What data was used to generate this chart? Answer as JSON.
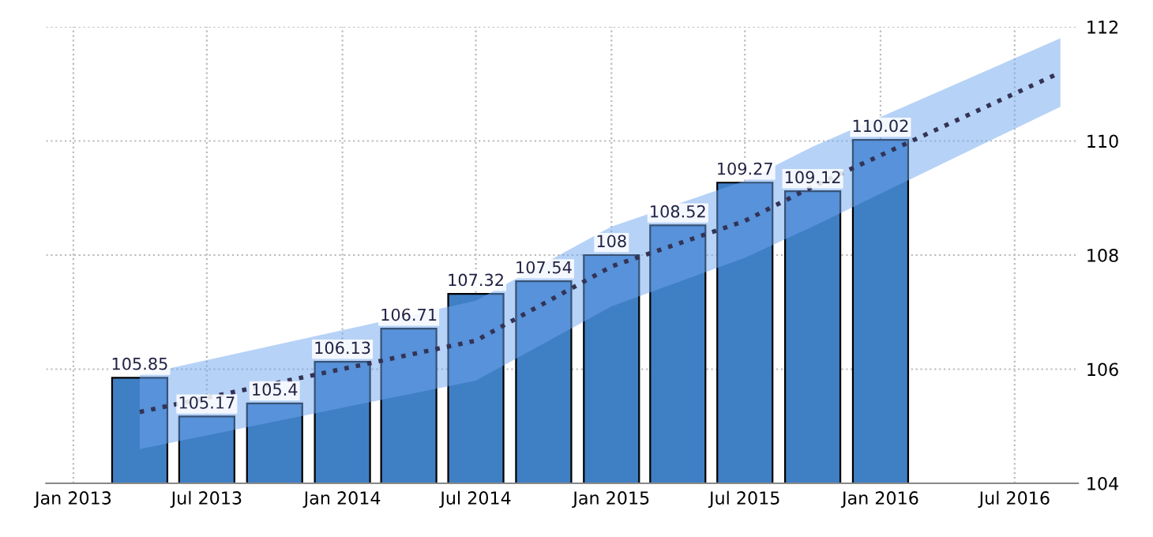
{
  "chart_data": {
    "type": "bar",
    "x": [
      "2013-04",
      "2013-07",
      "2013-10",
      "2014-01",
      "2014-04",
      "2014-07",
      "2014-10",
      "2015-01",
      "2015-04",
      "2015-07",
      "2015-10",
      "2016-01"
    ],
    "series": [
      {
        "color": "#3f7fc4",
        "values": [
          105.85,
          105.17,
          105.4,
          106.13,
          106.71,
          107.32,
          107.54,
          108,
          108.52,
          109.27,
          109.12,
          110.02
        ],
        "value_labels": [
          "105.85",
          "105.17",
          "105.4",
          "106.13",
          "106.71",
          "107.32",
          "107.54",
          "108",
          "108.52",
          "109.27",
          "109.12",
          "110.02"
        ]
      },
      {
        "type": "line",
        "color": "#333355",
        "line_style": "dotted",
        "x": [
          "2013-04",
          "2014-07",
          "2015-01",
          "2015-07",
          "2015-10",
          "2016-09"
        ],
        "values": [
          105.25,
          106.5,
          107.8,
          108.6,
          109.2,
          111.2
        ],
        "lower": [
          104.6,
          105.8,
          107.1,
          107.95,
          108.5,
          110.6
        ],
        "upper": [
          105.9,
          107.2,
          108.5,
          109.3,
          109.9,
          111.8
        ]
      }
    ],
    "xlim": [
      "2012-11-25",
      "2016-09-25"
    ],
    "xticks": [
      {
        "value": "2013-01-01",
        "label": "Jan 2013"
      },
      {
        "value": "2013-07-01",
        "label": "Jul 2013"
      },
      {
        "value": "2014-01-01",
        "label": "Jan 2014"
      },
      {
        "value": "2014-07-01",
        "label": "Jul 2014"
      },
      {
        "value": "2015-01-01",
        "label": "Jan 2015"
      },
      {
        "value": "2015-07-01",
        "label": "Jul 2015"
      },
      {
        "value": "2016-01-01",
        "label": "Jan 2016"
      },
      {
        "value": "2016-07-01",
        "label": "Jul 2016"
      }
    ],
    "ylim": [
      104,
      112
    ],
    "yticks": [
      104,
      106,
      108,
      110,
      112
    ],
    "grid": true
  }
}
